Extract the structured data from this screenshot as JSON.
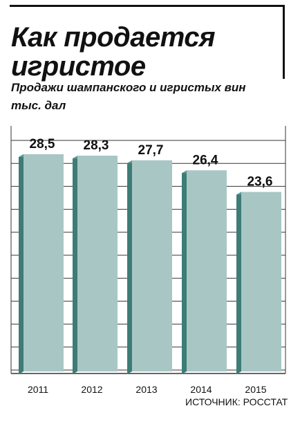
{
  "header": {
    "title_line1": "Как продается",
    "title_line2": "игристое",
    "subtitle": "Продажи шампанского и игристых вин",
    "unit": "тыс. дал"
  },
  "source": "ИСТОЧНИК: РОССТАТ",
  "colors": {
    "bar_face": "#a8c7c4",
    "bar_side": "#3e7c76",
    "bar_top": "#5f9690",
    "grid": "#333333"
  },
  "chart_data": {
    "type": "bar",
    "categories": [
      "2011",
      "2012",
      "2013",
      "2014",
      "2015"
    ],
    "values": [
      28.5,
      28.3,
      27.7,
      26.4,
      23.6
    ],
    "value_labels": [
      "28,5",
      "28,3",
      "27,7",
      "26,4",
      "23,6"
    ],
    "title": "Как продается игристое",
    "subtitle": "Продажи шампанского и игристых вин",
    "ylabel": "тыс. дал",
    "xlabel": "",
    "ylim": [
      0,
      28.5
    ],
    "grid": true,
    "legend": "none"
  }
}
